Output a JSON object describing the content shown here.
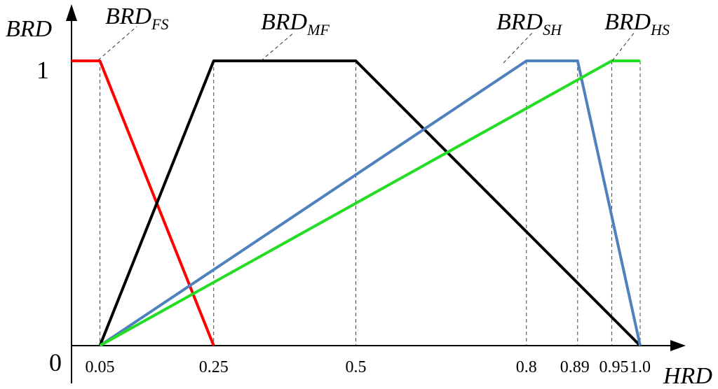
{
  "chart_data": {
    "type": "line",
    "xlabel": "HRD",
    "ylabel": "BRD",
    "xlim": [
      0,
      1.0
    ],
    "ylim": [
      0,
      1
    ],
    "x_ticks": [
      "0.05",
      "0.25",
      "0.5",
      "0.8",
      "0.89",
      "0.95",
      "1.0"
    ],
    "y_ticks": [
      "0",
      "1"
    ],
    "series": [
      {
        "name": "BRD",
        "sub": "FS",
        "color": "#ff0000",
        "x": [
          0.0,
          0.05,
          0.25
        ],
        "y": [
          1,
          1,
          0
        ]
      },
      {
        "name": "BRD",
        "sub": "MF",
        "color": "#000000",
        "x": [
          0.05,
          0.25,
          0.5,
          1.0
        ],
        "y": [
          0,
          1,
          1,
          0
        ]
      },
      {
        "name": "BRD",
        "sub": "SH",
        "color": "#4f81bd",
        "x": [
          0.05,
          0.8,
          0.89,
          1.0
        ],
        "y": [
          0,
          1,
          1,
          0
        ]
      },
      {
        "name": "BRD",
        "sub": "HS",
        "color": "#22dd22",
        "x": [
          0.05,
          0.95,
          1.0
        ],
        "y": [
          0,
          1,
          1
        ]
      }
    ]
  }
}
